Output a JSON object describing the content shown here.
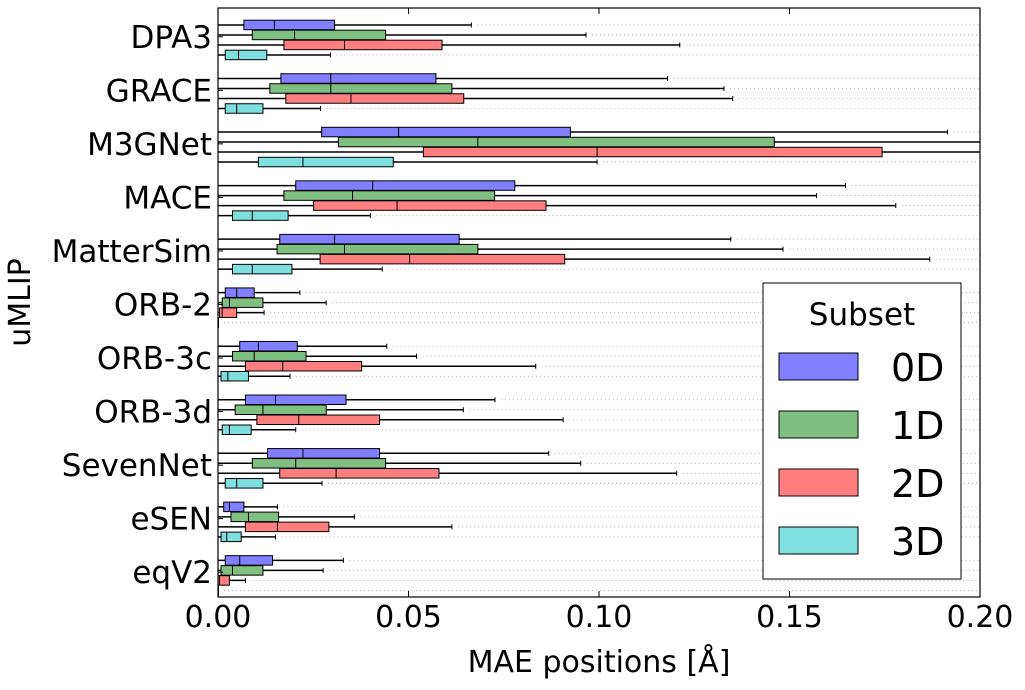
{
  "chart_data": {
    "type": "boxplot",
    "orientation": "horizontal",
    "xlabel": "MAE positions [Å]",
    "ylabel": "uMLIP",
    "xlim": [
      0.0,
      0.2
    ],
    "xticks": [
      "0.00",
      "0.05",
      "0.10",
      "0.15",
      "0.20"
    ],
    "grid": false,
    "legend": {
      "title": "Subset",
      "placement": "lower-right",
      "entries": [
        {
          "name": "0D",
          "color": "#7f7fff"
        },
        {
          "name": "1D",
          "color": "#7fbf7f"
        },
        {
          "name": "2D",
          "color": "#ff7f7f"
        },
        {
          "name": "3D",
          "color": "#7fdfdf"
        }
      ]
    },
    "series_names": [
      "0D",
      "1D",
      "2D",
      "3D"
    ],
    "series_colors": [
      "#7f7fff",
      "#7fbf7f",
      "#ff7f7f",
      "#7fdfdf"
    ],
    "categories": [
      "DPA3",
      "GRACE",
      "M3GNet",
      "MACE",
      "MatterSim",
      "ORB-2",
      "ORB-3c",
      "ORB-3d",
      "SevenNet",
      "eSEN",
      "eqV2"
    ],
    "boxes": {
      "DPA3": [
        {
          "whislo": 0.0,
          "q1": 0.0068,
          "med": 0.0148,
          "q3": 0.0306,
          "whishi": 0.0665
        },
        {
          "whislo": 0.0,
          "q1": 0.009,
          "med": 0.0201,
          "q3": 0.044,
          "whishi": 0.0966
        },
        {
          "whislo": 0.0,
          "q1": 0.0173,
          "med": 0.0332,
          "q3": 0.0588,
          "whishi": 0.1212
        },
        {
          "whislo": 0.0,
          "q1": 0.0019,
          "med": 0.0054,
          "q3": 0.0128,
          "whishi": 0.0295
        }
      ],
      "GRACE": [
        {
          "whislo": 0.0,
          "q1": 0.0165,
          "med": 0.0296,
          "q3": 0.0572,
          "whishi": 0.118
        },
        {
          "whislo": 0.0,
          "q1": 0.0136,
          "med": 0.0296,
          "q3": 0.0614,
          "whishi": 0.1328
        },
        {
          "whislo": 0.0,
          "q1": 0.0178,
          "med": 0.0349,
          "q3": 0.0645,
          "whishi": 0.1351
        },
        {
          "whislo": 0.0,
          "q1": 0.0019,
          "med": 0.0049,
          "q3": 0.0118,
          "whishi": 0.0269
        }
      ],
      "M3GNet": [
        {
          "whislo": 0.0,
          "q1": 0.0272,
          "med": 0.0474,
          "q3": 0.0925,
          "whishi": 0.1915
        },
        {
          "whislo": 0.0,
          "q1": 0.0316,
          "med": 0.0682,
          "q3": 0.146,
          "whishi": 0.2
        },
        {
          "whislo": 0.0,
          "q1": 0.0539,
          "med": 0.0995,
          "q3": 0.1743,
          "whishi": 0.2
        },
        {
          "whislo": 0.0,
          "q1": 0.0106,
          "med": 0.0223,
          "q3": 0.046,
          "whishi": 0.0995
        }
      ],
      "MACE": [
        {
          "whislo": 0.0,
          "q1": 0.0204,
          "med": 0.0406,
          "q3": 0.0779,
          "whishi": 0.1647
        },
        {
          "whislo": 0.0,
          "q1": 0.0173,
          "med": 0.0353,
          "q3": 0.0726,
          "whishi": 0.1571
        },
        {
          "whislo": 0.0,
          "q1": 0.0251,
          "med": 0.047,
          "q3": 0.0861,
          "whishi": 0.1779
        },
        {
          "whislo": 0.0,
          "q1": 0.0038,
          "med": 0.009,
          "q3": 0.0184,
          "whishi": 0.04
        }
      ],
      "MatterSim": [
        {
          "whislo": 0.0,
          "q1": 0.0162,
          "med": 0.0306,
          "q3": 0.0633,
          "whishi": 0.1346
        },
        {
          "whislo": 0.0,
          "q1": 0.0155,
          "med": 0.0332,
          "q3": 0.0682,
          "whishi": 0.1483
        },
        {
          "whislo": 0.0,
          "q1": 0.0268,
          "med": 0.0503,
          "q3": 0.091,
          "whishi": 0.1868
        },
        {
          "whislo": 0.0,
          "q1": 0.0038,
          "med": 0.009,
          "q3": 0.0194,
          "whishi": 0.0431
        }
      ],
      "ORB-2": [
        {
          "whislo": 0.0,
          "q1": 0.0019,
          "med": 0.0049,
          "q3": 0.0095,
          "whishi": 0.0215
        },
        {
          "whislo": 0.0,
          "q1": 0.0011,
          "med": 0.003,
          "q3": 0.0118,
          "whishi": 0.0284
        },
        {
          "whislo": 0.0,
          "q1": 0.0004,
          "med": 0.0011,
          "q3": 0.0049,
          "whishi": 0.0121
        },
        {
          "whislo": 0.0,
          "q1": 0.0,
          "med": 0.0,
          "q3": 0.0,
          "whishi": 0.0
        }
      ],
      "ORB-3c": [
        {
          "whislo": 0.0,
          "q1": 0.0057,
          "med": 0.0106,
          "q3": 0.0208,
          "whishi": 0.0443
        },
        {
          "whislo": 0.0,
          "q1": 0.0038,
          "med": 0.0095,
          "q3": 0.0231,
          "whishi": 0.0521
        },
        {
          "whislo": 0.0,
          "q1": 0.0072,
          "med": 0.017,
          "q3": 0.0377,
          "whishi": 0.0834
        },
        {
          "whislo": 0.0,
          "q1": 0.0008,
          "med": 0.0026,
          "q3": 0.008,
          "whishi": 0.0189
        }
      ],
      "ORB-3d": [
        {
          "whislo": 0.0,
          "q1": 0.0072,
          "med": 0.0151,
          "q3": 0.0336,
          "whishi": 0.0727
        },
        {
          "whislo": 0.0,
          "q1": 0.0045,
          "med": 0.0118,
          "q3": 0.0284,
          "whishi": 0.0644
        },
        {
          "whislo": 0.0,
          "q1": 0.0102,
          "med": 0.0212,
          "q3": 0.0424,
          "whishi": 0.0906
        },
        {
          "whislo": 0.0,
          "q1": 0.0011,
          "med": 0.003,
          "q3": 0.0087,
          "whishi": 0.0204
        }
      ],
      "SevenNet": [
        {
          "whislo": 0.0,
          "q1": 0.013,
          "med": 0.0223,
          "q3": 0.0424,
          "whishi": 0.0868
        },
        {
          "whislo": 0.0,
          "q1": 0.009,
          "med": 0.0204,
          "q3": 0.044,
          "whishi": 0.0952
        },
        {
          "whislo": 0.0,
          "q1": 0.0162,
          "med": 0.031,
          "q3": 0.058,
          "whishi": 0.1204
        },
        {
          "whislo": 0.0,
          "q1": 0.0019,
          "med": 0.0049,
          "q3": 0.0118,
          "whishi": 0.0273
        }
      ],
      "eSEN": [
        {
          "whislo": 0.0,
          "q1": 0.0015,
          "med": 0.003,
          "q3": 0.0068,
          "whishi": 0.0156
        },
        {
          "whislo": 0.0,
          "q1": 0.0034,
          "med": 0.008,
          "q3": 0.0159,
          "whishi": 0.0358
        },
        {
          "whislo": 0.0,
          "q1": 0.0072,
          "med": 0.0156,
          "q3": 0.0291,
          "whishi": 0.0614
        },
        {
          "whislo": 0.0,
          "q1": 0.0008,
          "med": 0.0023,
          "q3": 0.0061,
          "whishi": 0.0151
        }
      ],
      "eqV2": [
        {
          "whislo": 0.0,
          "q1": 0.0019,
          "med": 0.0057,
          "q3": 0.0143,
          "whishi": 0.0329
        },
        {
          "whislo": 0.0,
          "q1": 0.0008,
          "med": 0.0038,
          "q3": 0.0118,
          "whishi": 0.0276
        },
        {
          "whislo": 0.0,
          "q1": 0.0,
          "med": 0.0004,
          "q3": 0.003,
          "whishi": 0.0072
        },
        {
          "whislo": 0.0,
          "q1": 0.0,
          "med": 0.0,
          "q3": 0.0,
          "whishi": 0.0
        }
      ]
    }
  }
}
